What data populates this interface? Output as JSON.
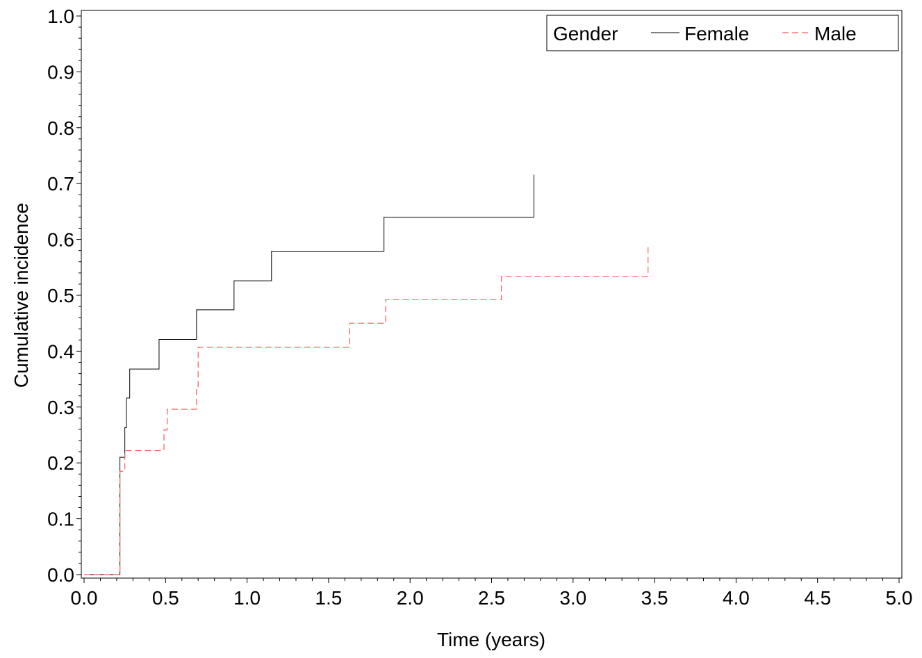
{
  "chart_data": {
    "type": "line",
    "step": true,
    "title": "",
    "xlabel": "Time (years)",
    "ylabel": "Cumulative incidence",
    "xlim": [
      0,
      5
    ],
    "ylim": [
      0,
      1
    ],
    "x_ticks": [
      "0.0",
      "0.5",
      "1.0",
      "1.5",
      "2.0",
      "2.5",
      "3.0",
      "3.5",
      "4.0",
      "4.5",
      "5.0"
    ],
    "y_ticks": [
      "0.0",
      "0.1",
      "0.2",
      "0.3",
      "0.4",
      "0.5",
      "0.6",
      "0.7",
      "0.8",
      "0.9",
      "1.0"
    ],
    "grid": false,
    "legend": {
      "title": "Gender",
      "placement": "top-right",
      "entries": [
        "Female",
        "Male"
      ]
    },
    "series": [
      {
        "name": "Female",
        "color": "#000000",
        "dash": "solid",
        "points": [
          [
            0,
            0
          ],
          [
            0.22,
            0.21
          ],
          [
            0.25,
            0.263
          ],
          [
            0.26,
            0.316
          ],
          [
            0.28,
            0.368
          ],
          [
            0.46,
            0.421
          ],
          [
            0.69,
            0.474
          ],
          [
            0.92,
            0.526
          ],
          [
            1.15,
            0.579
          ],
          [
            1.84,
            0.64
          ],
          [
            2.76,
            0.716
          ]
        ],
        "end_x": 2.76
      },
      {
        "name": "Male",
        "color": "#ff5a5a",
        "dash": "dashed",
        "points": [
          [
            0,
            0
          ],
          [
            0.22,
            0.185
          ],
          [
            0.25,
            0.222
          ],
          [
            0.49,
            0.259
          ],
          [
            0.51,
            0.296
          ],
          [
            0.69,
            0.333
          ],
          [
            0.7,
            0.407
          ],
          [
            1.63,
            0.45
          ],
          [
            1.85,
            0.492
          ],
          [
            2.56,
            0.534
          ],
          [
            3.46,
            0.59
          ]
        ],
        "end_x": 3.46
      }
    ]
  }
}
